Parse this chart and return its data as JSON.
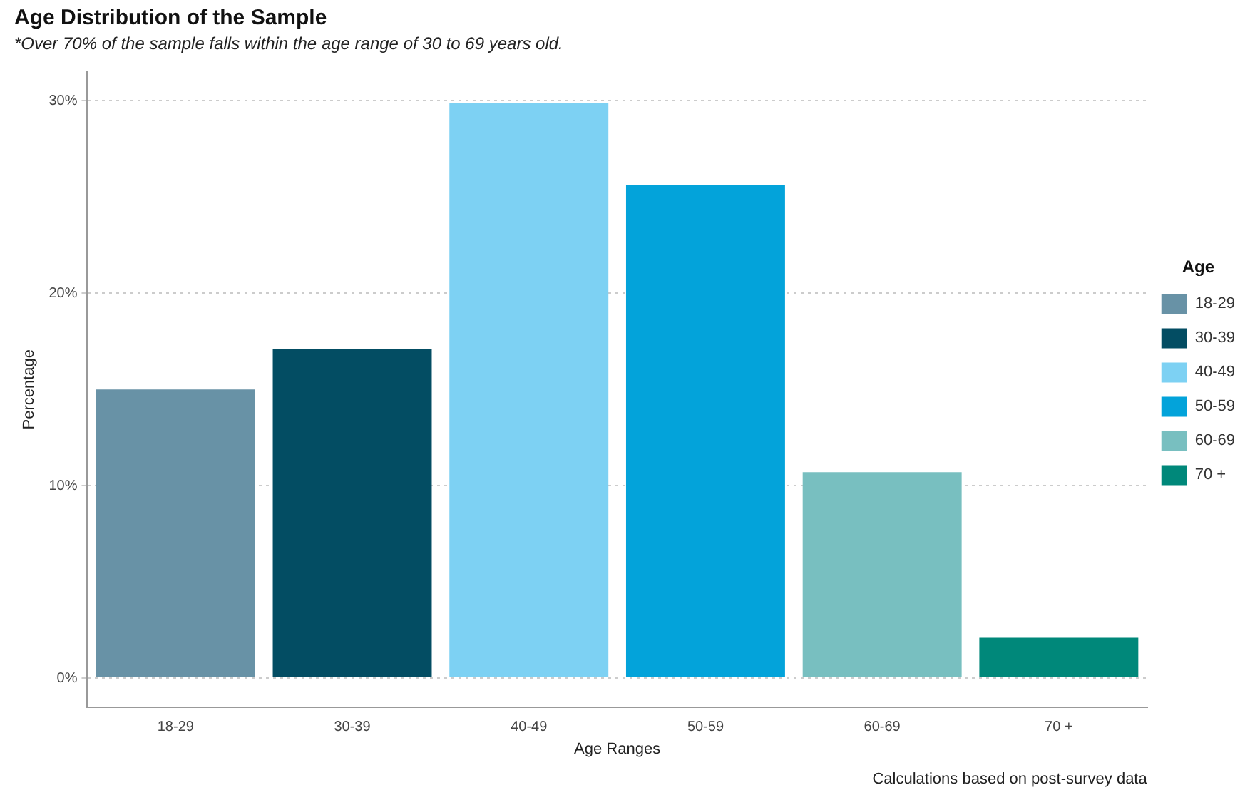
{
  "chart_data": {
    "type": "bar",
    "title": "Age Distribution of the Sample",
    "subtitle": "*Over 70% of the sample falls within the age range of 30 to 69 years old.",
    "xlabel": "Age Ranges",
    "ylabel": "Percentage",
    "legend_title": "Age",
    "categories": [
      "18-29",
      "30-39",
      "40-49",
      "50-59",
      "60-69",
      "70 +"
    ],
    "series": [
      {
        "name": "18-29",
        "color": "#6892a6",
        "values": [
          15.0,
          null,
          null,
          null,
          null,
          null
        ]
      },
      {
        "name": "30-39",
        "color": "#034d63",
        "values": [
          null,
          17.1,
          null,
          null,
          null,
          null
        ]
      },
      {
        "name": "40-49",
        "color": "#7dd1f3",
        "values": [
          null,
          null,
          29.9,
          null,
          null,
          null
        ]
      },
      {
        "name": "50-59",
        "color": "#03a3da",
        "values": [
          null,
          null,
          null,
          25.6,
          null,
          null
        ]
      },
      {
        "name": "60-69",
        "color": "#78bfc0",
        "values": [
          null,
          null,
          null,
          null,
          10.7,
          null
        ]
      },
      {
        "name": "70 +",
        "color": "#00887a",
        "values": [
          null,
          null,
          null,
          null,
          null,
          2.1
        ]
      }
    ],
    "ylim": [
      -1.5,
      31.5
    ],
    "yticks": [
      {
        "value": 0,
        "label": "0%"
      },
      {
        "value": 10,
        "label": "10%"
      },
      {
        "value": 20,
        "label": "20%"
      },
      {
        "value": 30,
        "label": "30%"
      }
    ],
    "grid": "y",
    "legend": "right",
    "annotations": [
      "Calculations based on post-survey data"
    ]
  }
}
